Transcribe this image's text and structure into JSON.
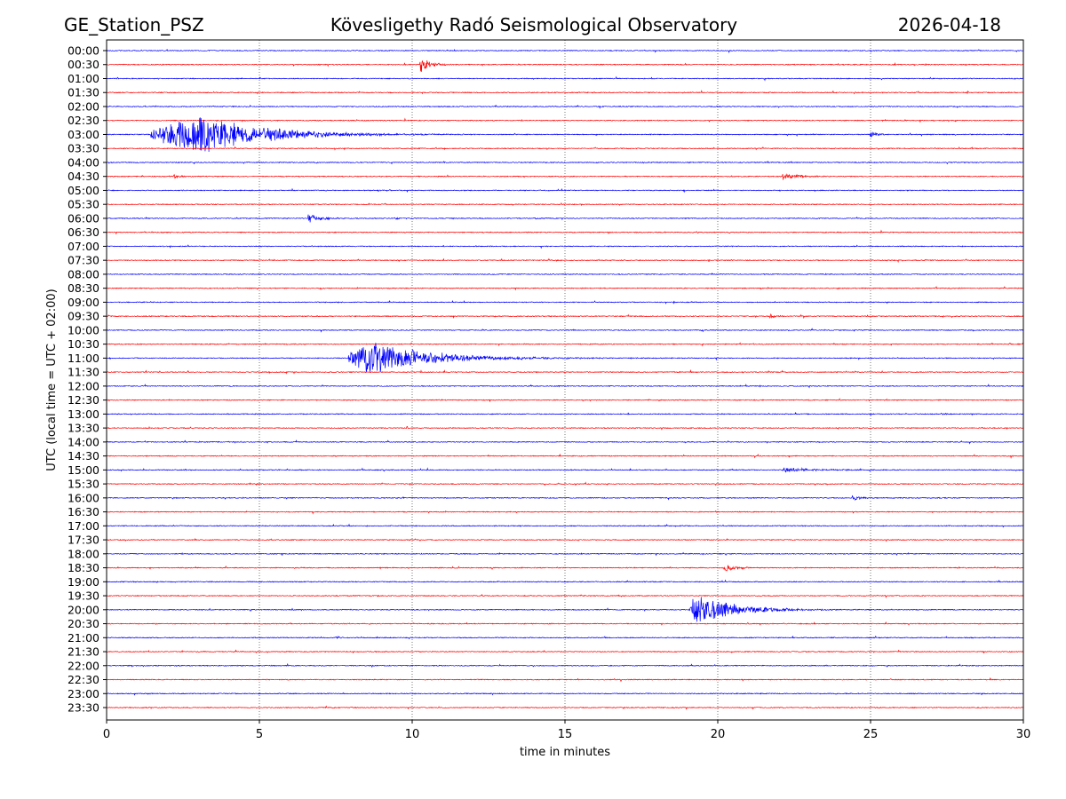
{
  "header": {
    "station": "GE_Station_PSZ",
    "observatory": "Kövesligethy Radó Seismological Observatory",
    "date": "2026-04-18"
  },
  "chart_data": {
    "type": "line",
    "subtype": "helicorder",
    "xlabel": "time in minutes",
    "ylabel": "UTC (local time = UTC + 02:00)",
    "xlim": [
      0,
      30
    ],
    "xticks": [
      "0",
      "5",
      "10",
      "15",
      "20",
      "25",
      "30"
    ],
    "grid": "vertical dotted at every 5 minutes",
    "row_labels": [
      "00:00",
      "00:30",
      "01:00",
      "01:30",
      "02:00",
      "02:30",
      "03:00",
      "03:30",
      "04:00",
      "04:30",
      "05:00",
      "05:30",
      "06:00",
      "06:30",
      "07:00",
      "07:30",
      "08:00",
      "08:30",
      "09:00",
      "09:30",
      "10:00",
      "10:30",
      "11:00",
      "11:30",
      "12:00",
      "12:30",
      "13:00",
      "13:30",
      "14:00",
      "14:30",
      "15:00",
      "15:30",
      "16:00",
      "16:30",
      "17:00",
      "17:30",
      "18:00",
      "18:30",
      "19:00",
      "19:30",
      "20:00",
      "20:30",
      "21:00",
      "21:30",
      "22:00",
      "22:30",
      "23:00",
      "23:30"
    ],
    "trace_colors": [
      "#0000ff",
      "#ff0000"
    ],
    "events": [
      {
        "row": "00:30",
        "start_min": 10.25,
        "duration_min": 1.8,
        "amplitude": 0.6
      },
      {
        "row": "03:00",
        "start_min": 1.45,
        "duration_min": 11,
        "amplitude": 1.5,
        "peak_min": 3.1
      },
      {
        "row": "03:00",
        "start_min": 24.95,
        "duration_min": 1.2,
        "amplitude": 0.3
      },
      {
        "row": "04:30",
        "start_min": 2.2,
        "duration_min": 0.8,
        "amplitude": 0.25
      },
      {
        "row": "04:30",
        "start_min": 22.1,
        "duration_min": 2.6,
        "amplitude": 0.35
      },
      {
        "row": "06:00",
        "start_min": 6.6,
        "duration_min": 2.2,
        "amplitude": 0.4
      },
      {
        "row": "06:00",
        "start_min": 9.4,
        "duration_min": 1.0,
        "amplitude": 0.15
      },
      {
        "row": "06:00",
        "start_min": 14.0,
        "duration_min": 1.0,
        "amplitude": 0.1
      },
      {
        "row": "09:30",
        "start_min": 21.7,
        "duration_min": 1.1,
        "amplitude": 0.25
      },
      {
        "row": "11:00",
        "start_min": 7.9,
        "duration_min": 10.5,
        "amplitude": 1.3,
        "peak_min": 8.6
      },
      {
        "row": "13:00",
        "start_min": 27.3,
        "duration_min": 0.8,
        "amplitude": 0.15
      },
      {
        "row": "15:00",
        "start_min": 22.1,
        "duration_min": 6.0,
        "amplitude": 0.2
      },
      {
        "row": "15:30",
        "start_min": 4.9,
        "duration_min": 0.3,
        "amplitude": 0.2
      },
      {
        "row": "16:00",
        "start_min": 24.4,
        "duration_min": 1.4,
        "amplitude": 0.2
      },
      {
        "row": "18:30",
        "start_min": 20.2,
        "duration_min": 2.2,
        "amplitude": 0.35
      },
      {
        "row": "20:00",
        "start_min": 19.05,
        "duration_min": 6.5,
        "amplitude": 1.2,
        "peak_min": 19.3
      },
      {
        "row": "21:00",
        "start_min": 7.5,
        "duration_min": 0.8,
        "amplitude": 0.1
      }
    ]
  }
}
